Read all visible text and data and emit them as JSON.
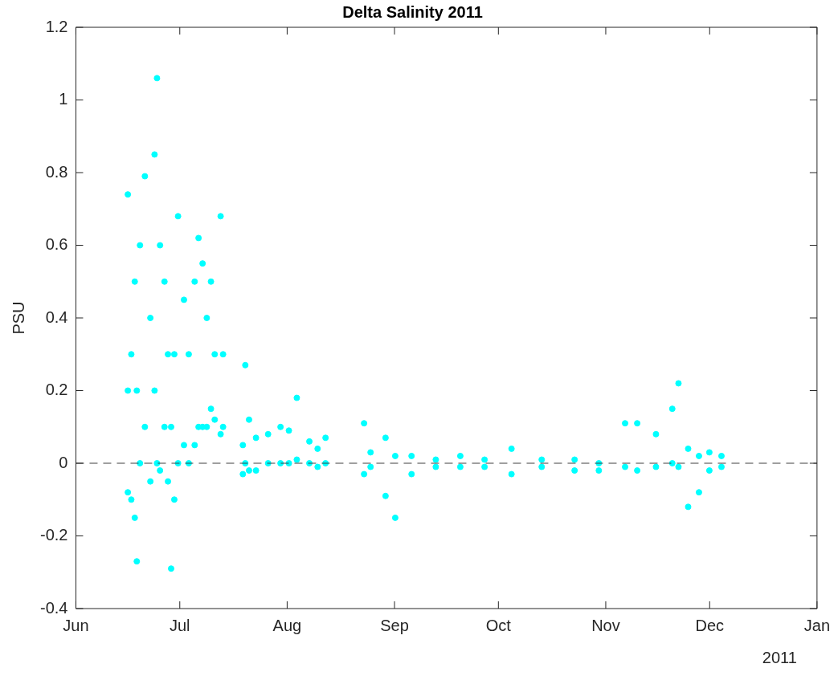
{
  "chart_data": {
    "type": "scatter",
    "title": "Delta Salinity 2011",
    "ylabel": "PSU",
    "marker": "circle",
    "grid": false,
    "legend": false,
    "xlim": [
      "2011-06-01",
      "2012-01-01"
    ],
    "xticks": [
      {
        "value": "2011-06-01",
        "label": "Jun"
      },
      {
        "value": "2011-07-01",
        "label": "Jul"
      },
      {
        "value": "2011-08-01",
        "label": "Aug"
      },
      {
        "value": "2011-09-01",
        "label": "Sep"
      },
      {
        "value": "2011-10-01",
        "label": "Oct"
      },
      {
        "value": "2011-11-01",
        "label": "Nov"
      },
      {
        "value": "2011-12-01",
        "label": "Dec"
      },
      {
        "value": "2012-01-01",
        "label": "Jan"
      }
    ],
    "ylim": [
      -0.4,
      1.2
    ],
    "yticks": [
      -0.4,
      -0.2,
      0,
      0.2,
      0.4,
      0.6,
      0.8,
      1,
      1.2
    ],
    "ref_lines": [
      {
        "axis": "y",
        "value": 0,
        "color": "#404040",
        "line_style": "dashed"
      }
    ],
    "annotations": [
      "2011"
    ],
    "series": [
      {
        "color": "#00ffff",
        "x": [
          "2011-06-16",
          "2011-06-16",
          "2011-06-16",
          "2011-06-17",
          "2011-06-17",
          "2011-06-18",
          "2011-06-18",
          "2011-06-18T14:00",
          "2011-06-18T14:00",
          "2011-06-19T12:00",
          "2011-06-19T12:00",
          "2011-06-20T22:00",
          "2011-06-20T22:00",
          "2011-06-22T12:00",
          "2011-06-22T12:00",
          "2011-06-23T17:00",
          "2011-06-23T17:00",
          "2011-06-24T10:00",
          "2011-06-24T10:00",
          "2011-06-25T07:00",
          "2011-06-25T07:00",
          "2011-06-26T14:00",
          "2011-06-26T14:00",
          "2011-06-27T14:00",
          "2011-06-27T14:00",
          "2011-06-28T12:00",
          "2011-06-28T12:00",
          "2011-06-29T10:00",
          "2011-06-29T10:00",
          "2011-06-30T12:00",
          "2011-06-30T12:00",
          "2011-07-02T05:00",
          "2011-07-02T05:00",
          "2011-07-03T14:00",
          "2011-07-03T14:00",
          "2011-07-05T07:00",
          "2011-07-05T07:00",
          "2011-07-06T10:00",
          "2011-07-06T10:00",
          "2011-07-07T14:00",
          "2011-07-07T14:00",
          "2011-07-08T19:00",
          "2011-07-08T19:00",
          "2011-07-10",
          "2011-07-10",
          "2011-07-11T02:00",
          "2011-07-11T02:00",
          "2011-07-12T19:00",
          "2011-07-12T19:00",
          "2011-07-13T12:00",
          "2011-07-13T12:00",
          "2011-07-19T05:00",
          "2011-07-19T05:00",
          "2011-07-19T22:00",
          "2011-07-19T22:00",
          "2011-07-21",
          "2011-07-21",
          "2011-07-23",
          "2011-07-23",
          "2011-07-26T12:00",
          "2011-07-26T12:00",
          "2011-07-30T02:00",
          "2011-07-30T02:00",
          "2011-08-01T12:00",
          "2011-08-01T12:00",
          "2011-08-03T19:00",
          "2011-08-03T19:00",
          "2011-08-07T10:00",
          "2011-08-07T10:00",
          "2011-08-09T19:00",
          "2011-08-09T19:00",
          "2011-08-12T02:00",
          "2011-08-12T02:00",
          "2011-08-23T05:00",
          "2011-08-23T05:00",
          "2011-08-25T02:00",
          "2011-08-25T02:00",
          "2011-08-29T10:00",
          "2011-08-29T10:00",
          "2011-09-01T05:00",
          "2011-09-01T05:00",
          "2011-09-05T22:00",
          "2011-09-05T22:00",
          "2011-09-12T22:00",
          "2011-09-12T22:00",
          "2011-09-20",
          "2011-09-20",
          "2011-09-27",
          "2011-09-27",
          "2011-10-04T19:00",
          "2011-10-04T19:00",
          "2011-10-13T12:00",
          "2011-10-13T12:00",
          "2011-10-23",
          "2011-10-23",
          "2011-10-30",
          "2011-10-30",
          "2011-11-06T14:00",
          "2011-11-06T14:00",
          "2011-11-10T02:00",
          "2011-11-10T02:00",
          "2011-11-15T12:00",
          "2011-11-15T12:00",
          "2011-11-20T05:00",
          "2011-11-20T05:00",
          "2011-11-22",
          "2011-11-22",
          "2011-11-24T19:00",
          "2011-11-24T19:00",
          "2011-11-27T22:00",
          "2011-11-27T22:00",
          "2011-11-30T22:00",
          "2011-11-30T22:00",
          "2011-12-04T10:00",
          "2011-12-04T10:00"
        ],
        "values": [
          0.74,
          0.2,
          -0.08,
          0.3,
          -0.1,
          0.5,
          -0.15,
          -0.27,
          0.2,
          0.6,
          0,
          0.79,
          0.1,
          -0.05,
          0.4,
          0.85,
          0.2,
          1.06,
          0,
          0.6,
          -0.02,
          0.5,
          0.1,
          -0.05,
          0.3,
          -0.29,
          0.1,
          -0.1,
          0.3,
          0.68,
          0,
          0.45,
          0.05,
          0.3,
          0,
          0.5,
          0.05,
          0.62,
          0.1,
          0.55,
          0.1,
          0.4,
          0.1,
          0.5,
          0.15,
          0.3,
          0.12,
          0.68,
          0.08,
          0.3,
          0.1,
          -0.03,
          0.05,
          0.27,
          0,
          0.12,
          -0.02,
          0.07,
          -0.02,
          0.08,
          0,
          0.1,
          0,
          0.09,
          0,
          0.18,
          0.01,
          0.06,
          0,
          0.04,
          -0.01,
          0.07,
          0,
          0.11,
          -0.03,
          0.03,
          -0.01,
          0.07,
          -0.09,
          -0.15,
          0.02,
          0.02,
          -0.03,
          0.01,
          -0.01,
          0.02,
          -0.01,
          0.01,
          -0.01,
          0.04,
          -0.03,
          0.01,
          -0.01,
          -0.02,
          0.01,
          0,
          -0.02,
          0.11,
          -0.01,
          0.11,
          -0.02,
          0.08,
          -0.01,
          0.15,
          0,
          0.22,
          -0.01,
          -0.12,
          0.04,
          -0.08,
          0.02,
          0.03,
          -0.02,
          0.02,
          -0.01
        ]
      }
    ]
  }
}
